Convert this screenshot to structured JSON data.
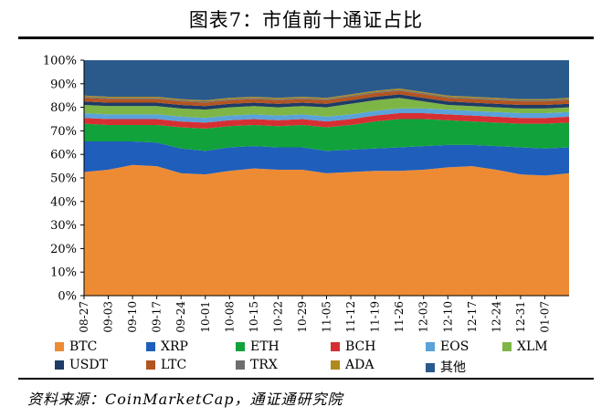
{
  "title": "图表7：市值前十通证占比",
  "source": "资料来源：CoinMarketCap，通证通研究院",
  "chart_data": {
    "type": "area",
    "stacked": true,
    "percent": true,
    "ylim": [
      0,
      100
    ],
    "yticks": [
      "0%",
      "10%",
      "20%",
      "30%",
      "40%",
      "50%",
      "60%",
      "70%",
      "80%",
      "90%",
      "100%"
    ],
    "xticks": [
      "08-27",
      "09-03",
      "09-10",
      "09-17",
      "09-24",
      "10-01",
      "10-08",
      "10-15",
      "10-22",
      "10-29",
      "11-05",
      "11-12",
      "11-19",
      "11-26",
      "12-03",
      "12-10",
      "12-17",
      "12-24",
      "12-31",
      "01-07"
    ],
    "grid": false,
    "legend_position": "bottom",
    "series": [
      {
        "name": "BTC",
        "color": "#ED8B35",
        "values": [
          52.5,
          53.5,
          55.5,
          55,
          52,
          51.5,
          53,
          54,
          53.5,
          53.5,
          52,
          52.5,
          53,
          53,
          53.5,
          54.5,
          55,
          53.5,
          51.5,
          51,
          52
        ]
      },
      {
        "name": "XRP",
        "color": "#1F5EBB",
        "values": [
          13,
          12,
          10,
          10,
          10.5,
          10,
          10,
          9.5,
          9.5,
          9.5,
          9.5,
          9.5,
          9.5,
          10,
          10,
          9.5,
          9,
          10,
          11.5,
          11.5,
          11
        ]
      },
      {
        "name": "ETH",
        "color": "#11A23C",
        "values": [
          7.5,
          7,
          7,
          7.5,
          9,
          9.5,
          9,
          9,
          9,
          9.5,
          10,
          10.5,
          11.5,
          12,
          11.5,
          10.5,
          10,
          10,
          10,
          10.5,
          10.5
        ]
      },
      {
        "name": "BCH",
        "color": "#D62F33",
        "values": [
          2.5,
          2.5,
          2.5,
          2.5,
          2.5,
          2.5,
          2.5,
          2.5,
          2.5,
          2.5,
          2.5,
          2.5,
          2.5,
          2.5,
          2.5,
          2.5,
          2.5,
          2.5,
          2.5,
          2.5,
          2.5
        ]
      },
      {
        "name": "EOS",
        "color": "#5AA2D9",
        "values": [
          2,
          2,
          2,
          2,
          2,
          2,
          2,
          2,
          2,
          2,
          2,
          2,
          2,
          2,
          2,
          2,
          2,
          2,
          2,
          2,
          2
        ]
      },
      {
        "name": "XLM",
        "color": "#7DB647",
        "values": [
          3.5,
          3.5,
          3.5,
          3.5,
          3.5,
          3.5,
          3.5,
          3.5,
          3.5,
          3.5,
          4,
          4.5,
          4.5,
          4.5,
          3,
          2,
          2,
          2,
          2,
          2,
          2
        ]
      },
      {
        "name": "USDT",
        "color": "#1F3B66",
        "values": [
          1.5,
          1.5,
          1.5,
          1.5,
          1.5,
          1.5,
          1.5,
          1.5,
          1.5,
          1.5,
          1.5,
          1.5,
          1.5,
          1.5,
          1.5,
          1.5,
          1.5,
          1.5,
          1.5,
          1.5,
          1.5
        ]
      },
      {
        "name": "LTC",
        "color": "#B4541F",
        "values": [
          1.5,
          1.5,
          1.5,
          1.5,
          1.5,
          1.5,
          1.5,
          1.5,
          1.5,
          1.5,
          1.5,
          1.5,
          1.5,
          1.5,
          1.5,
          1.5,
          1.5,
          1.5,
          1.5,
          1.5,
          1.5
        ]
      },
      {
        "name": "TRX",
        "color": "#6E6E6E",
        "values": [
          0.5,
          0.5,
          0.5,
          0.5,
          0.5,
          0.5,
          0.5,
          0.5,
          0.5,
          0.5,
          0.5,
          0.5,
          0.5,
          0.5,
          0.5,
          0.5,
          0.5,
          0.5,
          0.5,
          0.5,
          0.5
        ]
      },
      {
        "name": "ADA",
        "color": "#B08A1C",
        "values": [
          0.5,
          0.5,
          0.5,
          0.5,
          0.5,
          0.5,
          0.5,
          0.5,
          0.5,
          0.5,
          0.5,
          0.5,
          0.5,
          0.5,
          0.5,
          0.5,
          0.5,
          0.5,
          0.5,
          0.5,
          0.5
        ]
      },
      {
        "name": "其他",
        "color": "#2A5A8C",
        "values": [
          15,
          15.5,
          15.5,
          15.5,
          16.5,
          17,
          16,
          16,
          16.5,
          16,
          16.5,
          15.5,
          14.5,
          14,
          14.5,
          15.5,
          16,
          16,
          16.5,
          16.5,
          16.5
        ]
      }
    ]
  }
}
